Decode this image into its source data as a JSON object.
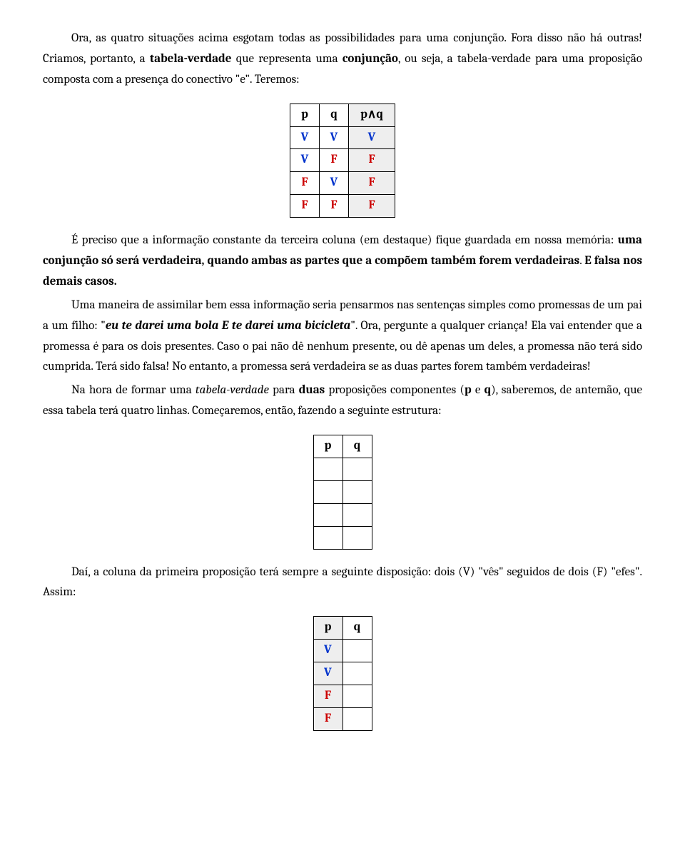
{
  "para1_a": "Ora, as quatro situações acima esgotam todas as possibilidades para uma conjunção. Fora disso não há outras! Criamos, portanto, a ",
  "para1_b": "tabela-verdade",
  "para1_c": " que representa uma ",
  "para1_d": "conjunção",
  "para1_e": ", ou seja, a tabela-verdade para uma proposição composta com a presença do conectivo \"e\". Teremos:",
  "t1_h1": "p",
  "t1_h2": "q",
  "t1_h3": "p∧q",
  "t1_r1c1": "V",
  "t1_r1c2": "V",
  "t1_r1c3": "V",
  "t1_r2c1": "V",
  "t1_r2c2": "F",
  "t1_r2c3": "F",
  "t1_r3c1": "F",
  "t1_r3c2": "V",
  "t1_r3c3": "F",
  "t1_r4c1": "F",
  "t1_r4c2": "F",
  "t1_r4c3": "F",
  "para2_a": "É preciso que a informação constante da terceira coluna (em destaque) fique guardada em nossa memória: ",
  "para2_b": "uma conjunção só será verdadeira, quando ambas as partes que a compõem também forem verdadeiras",
  "para2_c": ". ",
  "para2_d": "E falsa nos demais casos.",
  "para3_a": "Uma maneira de assimilar bem essa informação seria pensarmos nas sentenças simples como promessas de um pai a um filho: \"",
  "para3_b": "eu te darei uma bola E te darei uma bicicleta",
  "para3_c": "\". Ora, pergunte a qualquer criança! Ela vai entender que a promessa é para os dois presentes. Caso o pai não dê nenhum presente, ou dê apenas um deles, a promessa não terá sido cumprida. Terá sido falsa! No entanto, a promessa será verdadeira se as duas partes forem também verdadeiras!",
  "para4_a": "Na hora de formar uma ",
  "para4_b": "tabela-verdade",
  "para4_c": " para ",
  "para4_d": "duas",
  "para4_e": " proposições componentes (",
  "para4_f": "p",
  "para4_g": " e ",
  "para4_h": "q",
  "para4_i": "), saberemos, de antemão, que essa tabela terá quatro linhas. Começaremos, então, fazendo a seguinte estrutura:",
  "t2_h1": "p",
  "t2_h2": "q",
  "para5": "Daí, a coluna da primeira proposição terá sempre a seguinte disposição: dois (V) \"vês\" seguidos de dois (F) \"efes\". Assim:",
  "t3_h1": "p",
  "t3_h2": "q",
  "t3_r1c1": "V",
  "t3_r2c1": "V",
  "t3_r3c1": "F",
  "t3_r4c1": "F"
}
